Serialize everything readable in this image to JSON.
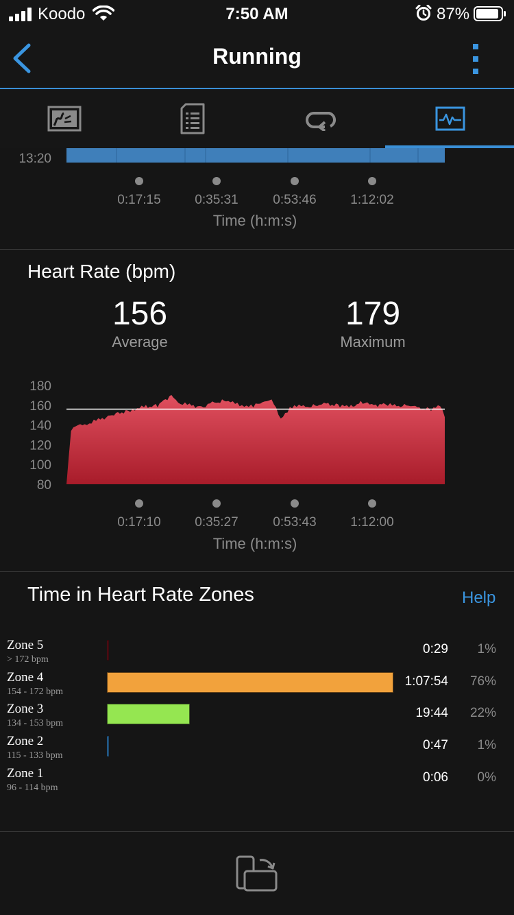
{
  "status_bar": {
    "carrier": "Koodo",
    "time": "7:50 AM",
    "battery": "87%"
  },
  "nav": {
    "title": "Running"
  },
  "tabs": [
    {
      "icon": "splits-map-icon",
      "selected": false
    },
    {
      "icon": "summary-list-icon",
      "selected": false
    },
    {
      "icon": "laps-loop-icon",
      "selected": false
    },
    {
      "icon": "charts-icon",
      "selected": true
    }
  ],
  "pace_chart": {
    "y_tick": "13:20",
    "x_ticks": [
      "0:17:15",
      "0:35:31",
      "0:53:46",
      "1:12:02"
    ],
    "x_title": "Time (h:m:s)",
    "color": "#3f7fba"
  },
  "heart_rate": {
    "title": "Heart Rate (bpm)",
    "average_value": "156",
    "average_label": "Average",
    "maximum_value": "179",
    "maximum_label": "Maximum"
  },
  "chart_data": {
    "type": "area",
    "title": "Heart Rate (bpm)",
    "xlabel": "Time (h:m:s)",
    "ylabel": "",
    "y_ticks": [
      "180",
      "160",
      "140",
      "120",
      "100",
      "80"
    ],
    "ylim": [
      80,
      180
    ],
    "x_ticks": [
      "0:17:10",
      "0:35:27",
      "0:53:43",
      "1:12:00"
    ],
    "x_minutes": [
      0,
      1,
      2,
      3,
      5,
      7,
      10,
      13,
      15,
      17,
      20,
      23,
      25,
      27,
      30,
      32,
      35,
      37,
      39,
      41,
      43,
      45,
      47,
      49,
      50,
      52,
      55,
      57,
      60,
      62,
      65,
      67,
      70,
      72,
      75,
      77,
      80,
      82,
      83
    ],
    "values": [
      80,
      135,
      138,
      140,
      142,
      145,
      150,
      154,
      156,
      158,
      160,
      170,
      162,
      160,
      158,
      162,
      165,
      161,
      160,
      159,
      163,
      167,
      145,
      158,
      160,
      158,
      160,
      161,
      160,
      158,
      163,
      160,
      161,
      159,
      160,
      157,
      156,
      159,
      148
    ],
    "average_line": 156,
    "series": [
      {
        "color": "#d24352"
      }
    ]
  },
  "zones": {
    "title": "Time in Heart Rate Zones",
    "help": "Help",
    "rows": [
      {
        "name": "Zone 5",
        "range": "> 172 bpm",
        "time": "0:29",
        "pct": "1%",
        "fraction": 0.007,
        "color": "#7a1420"
      },
      {
        "name": "Zone 4",
        "range": "154 - 172 bpm",
        "time": "1:07:54",
        "pct": "76%",
        "fraction": 1.0,
        "color": "#f2a23c"
      },
      {
        "name": "Zone 3",
        "range": "134 - 153 bpm",
        "time": "19:44",
        "pct": "22%",
        "fraction": 0.29,
        "color": "#95e651"
      },
      {
        "name": "Zone 2",
        "range": "115 - 133 bpm",
        "time": "0:47",
        "pct": "1%",
        "fraction": 0.007,
        "color": "#3a95e0"
      },
      {
        "name": "Zone 1",
        "range": "96 - 114 bpm",
        "time": "0:06",
        "pct": "0%",
        "fraction": 0.0,
        "color": "#888888"
      }
    ]
  },
  "bottom": {
    "icon": "rotate-device-icon"
  }
}
